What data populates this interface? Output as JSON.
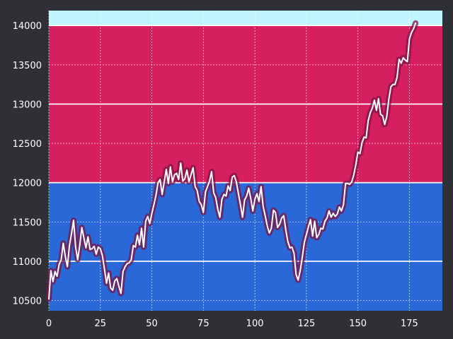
{
  "chart_data": {
    "type": "line",
    "title": "",
    "xlabel": "",
    "ylabel": "",
    "xlim": [
      0,
      191
    ],
    "ylim": [
      10370,
      14190
    ],
    "x_ticks": [
      0,
      25,
      50,
      75,
      100,
      125,
      150,
      175
    ],
    "y_ticks": [
      10500,
      11000,
      11500,
      12000,
      12500,
      13000,
      13500,
      14000
    ],
    "x_tick_labels": [
      "0",
      "25",
      "50",
      "75",
      "100",
      "125",
      "150",
      "175"
    ],
    "y_tick_labels": [
      "10500",
      "11000",
      "11500",
      "12000",
      "12500",
      "13000",
      "13500",
      "14000"
    ],
    "grid": true,
    "legend": "none",
    "bands": [
      {
        "from": 10370,
        "to": 12000,
        "color": "#2968d6"
      },
      {
        "from": 12000,
        "to": 14000,
        "color": "#d61f5e"
      },
      {
        "from": 14000,
        "to": 14190,
        "color": "#c0f4ff"
      }
    ],
    "band_lines": [
      11000,
      12000,
      13000,
      14000
    ],
    "series": [
      {
        "line_color": "#ffffff",
        "glow_color": "#7a1548",
        "x_start": 0,
        "x_step": 1,
        "values": [
          10520,
          10880,
          10740,
          10870,
          10810,
          10960,
          11020,
          11230,
          11060,
          10930,
          11200,
          11350,
          11520,
          11180,
          11020,
          11200,
          11430,
          11300,
          11170,
          11310,
          11150,
          11160,
          11190,
          11090,
          11180,
          11160,
          11070,
          10900,
          10720,
          10850,
          10660,
          10630,
          10750,
          10780,
          10680,
          10590,
          10870,
          10930,
          10970,
          10980,
          11020,
          11200,
          11180,
          11330,
          11210,
          11420,
          11180,
          11510,
          11570,
          11480,
          11610,
          11720,
          11840,
          12000,
          12040,
          11850,
          12010,
          12170,
          11990,
          12200,
          12010,
          12100,
          12120,
          12040,
          12250,
          12020,
          12050,
          12160,
          12010,
          12100,
          12190,
          11950,
          11900,
          11760,
          11720,
          11620,
          11880,
          11950,
          12020,
          12140,
          11870,
          11810,
          11660,
          11560,
          11790,
          11850,
          11830,
          11960,
          11900,
          12070,
          12090,
          12010,
          11860,
          11720,
          11560,
          11780,
          11830,
          11930,
          11800,
          11640,
          11790,
          11860,
          11760,
          11950,
          11700,
          11580,
          11450,
          11360,
          11420,
          11650,
          11620,
          11430,
          11470,
          11550,
          11580,
          11400,
          11250,
          11170,
          11180,
          11100,
          10830,
          10760,
          10880,
          11050,
          11240,
          11340,
          11440,
          11530,
          11320,
          11510,
          11300,
          11340,
          11420,
          11410,
          11510,
          11550,
          11640,
          11560,
          11610,
          11570,
          11600,
          11690,
          11640,
          11720,
          11990,
          11990,
          11980,
          12010,
          12100,
          12230,
          12390,
          12370,
          12510,
          12580,
          12570,
          12790,
          12890,
          12950,
          13050,
          12920,
          13070,
          12870,
          12850,
          12740,
          12840,
          13060,
          13220,
          13250,
          13250,
          13340,
          13570,
          13520,
          13590,
          13560,
          13540,
          13830,
          13910,
          13960,
          14030
        ]
      }
    ]
  }
}
